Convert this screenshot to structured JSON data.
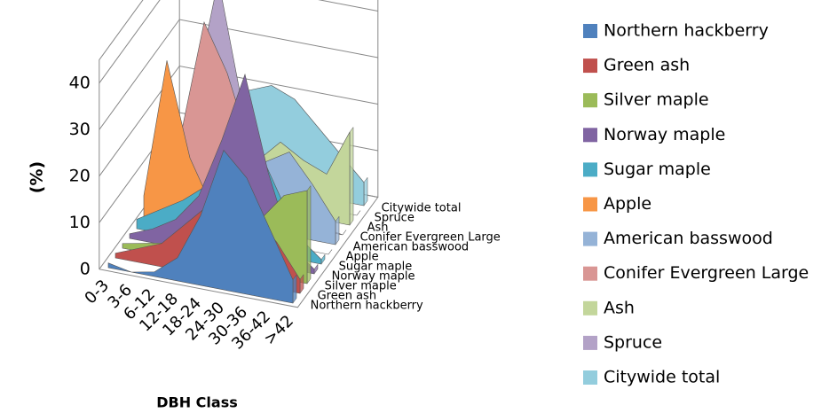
{
  "chart_data": {
    "type": "area3d",
    "x_label": "DBH Class",
    "y_label": "(%)",
    "categories": [
      "0-3",
      "3-6",
      "6-12",
      "12-18",
      "18-24",
      "24-30",
      "30-36",
      "36-42",
      ">42"
    ],
    "ylim": [
      0,
      45
    ],
    "yticks": [
      0,
      10,
      20,
      30,
      40
    ],
    "series": [
      {
        "name": "Northern hackberry",
        "color": "#4f81bd",
        "values": [
          1,
          0,
          1,
          5,
          15,
          30,
          25,
          15,
          5
        ]
      },
      {
        "name": "Green ash",
        "color": "#c0504d",
        "values": [
          1,
          3,
          5,
          10,
          15,
          20,
          15,
          10,
          3
        ]
      },
      {
        "name": "Silver maple",
        "color": "#9bbb59",
        "values": [
          1,
          2,
          3,
          5,
          8,
          10,
          12,
          18,
          20
        ]
      },
      {
        "name": "Norway maple",
        "color": "#8064a2",
        "values": [
          1,
          3,
          6,
          12,
          25,
          40,
          20,
          5,
          1
        ]
      },
      {
        "name": "Sugar maple",
        "color": "#4bacc6",
        "values": [
          2,
          5,
          8,
          12,
          18,
          25,
          15,
          5,
          1
        ]
      },
      {
        "name": "Apple",
        "color": "#f79646",
        "values": [
          5,
          35,
          15,
          5,
          2,
          1,
          0,
          0,
          0
        ]
      },
      {
        "name": "American basswood",
        "color": "#95b3d7",
        "values": [
          2,
          4,
          6,
          8,
          12,
          15,
          18,
          12,
          5
        ]
      },
      {
        "name": "Conifer Evergreen Large",
        "color": "#d99694",
        "values": [
          5,
          15,
          40,
          30,
          15,
          5,
          2,
          1,
          0
        ]
      },
      {
        "name": "Ash",
        "color": "#c3d69b",
        "values": [
          1,
          3,
          5,
          8,
          10,
          15,
          12,
          10,
          20
        ]
      },
      {
        "name": "Spruce",
        "color": "#b3a2c7",
        "values": [
          5,
          20,
          45,
          20,
          5,
          1,
          0,
          0,
          0
        ]
      },
      {
        "name": "Citywide total",
        "color": "#93cddd",
        "values": [
          5,
          10,
          15,
          20,
          22,
          20,
          15,
          10,
          5
        ]
      }
    ]
  }
}
